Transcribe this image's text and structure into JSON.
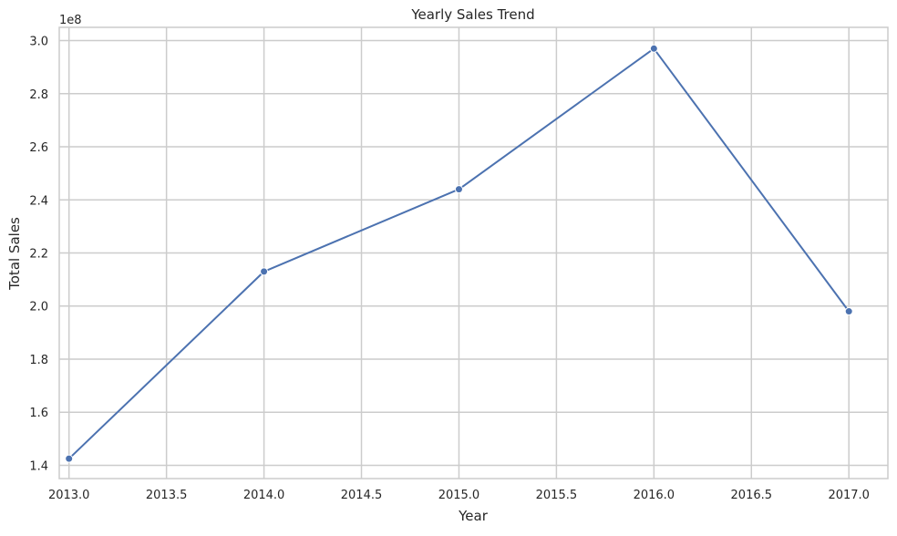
{
  "chart_data": {
    "type": "line",
    "title": "Yearly Sales Trend",
    "xlabel": "Year",
    "ylabel": "Total Sales",
    "y_offset_label": "1e8",
    "x": [
      2013,
      2014,
      2015,
      2016,
      2017
    ],
    "series": [
      {
        "values": [
          142500000,
          213000000,
          244000000,
          297000000,
          198000000
        ],
        "color": "#4c72b0"
      }
    ],
    "xlim": [
      2012.95,
      2017.2
    ],
    "ylim": [
      135000000.0,
      305000000.0
    ],
    "x_ticks": [
      2013.0,
      2013.5,
      2014.0,
      2014.5,
      2015.0,
      2015.5,
      2016.0,
      2016.5,
      2017.0
    ],
    "x_tick_labels": [
      "2013.0",
      "2013.5",
      "2014.0",
      "2014.5",
      "2015.0",
      "2015.5",
      "2016.0",
      "2016.5",
      "2017.0"
    ],
    "y_ticks": [
      140000000.0,
      160000000.0,
      180000000.0,
      200000000.0,
      220000000.0,
      240000000.0,
      260000000.0,
      280000000.0,
      300000000.0
    ],
    "y_tick_labels": [
      "1.4",
      "1.6",
      "1.8",
      "2.0",
      "2.2",
      "2.4",
      "2.6",
      "2.8",
      "3.0"
    ],
    "grid": true,
    "marker": "circle",
    "colors": {
      "grid": "#cccccc",
      "spine": "#cccccc",
      "text": "#262626"
    }
  }
}
